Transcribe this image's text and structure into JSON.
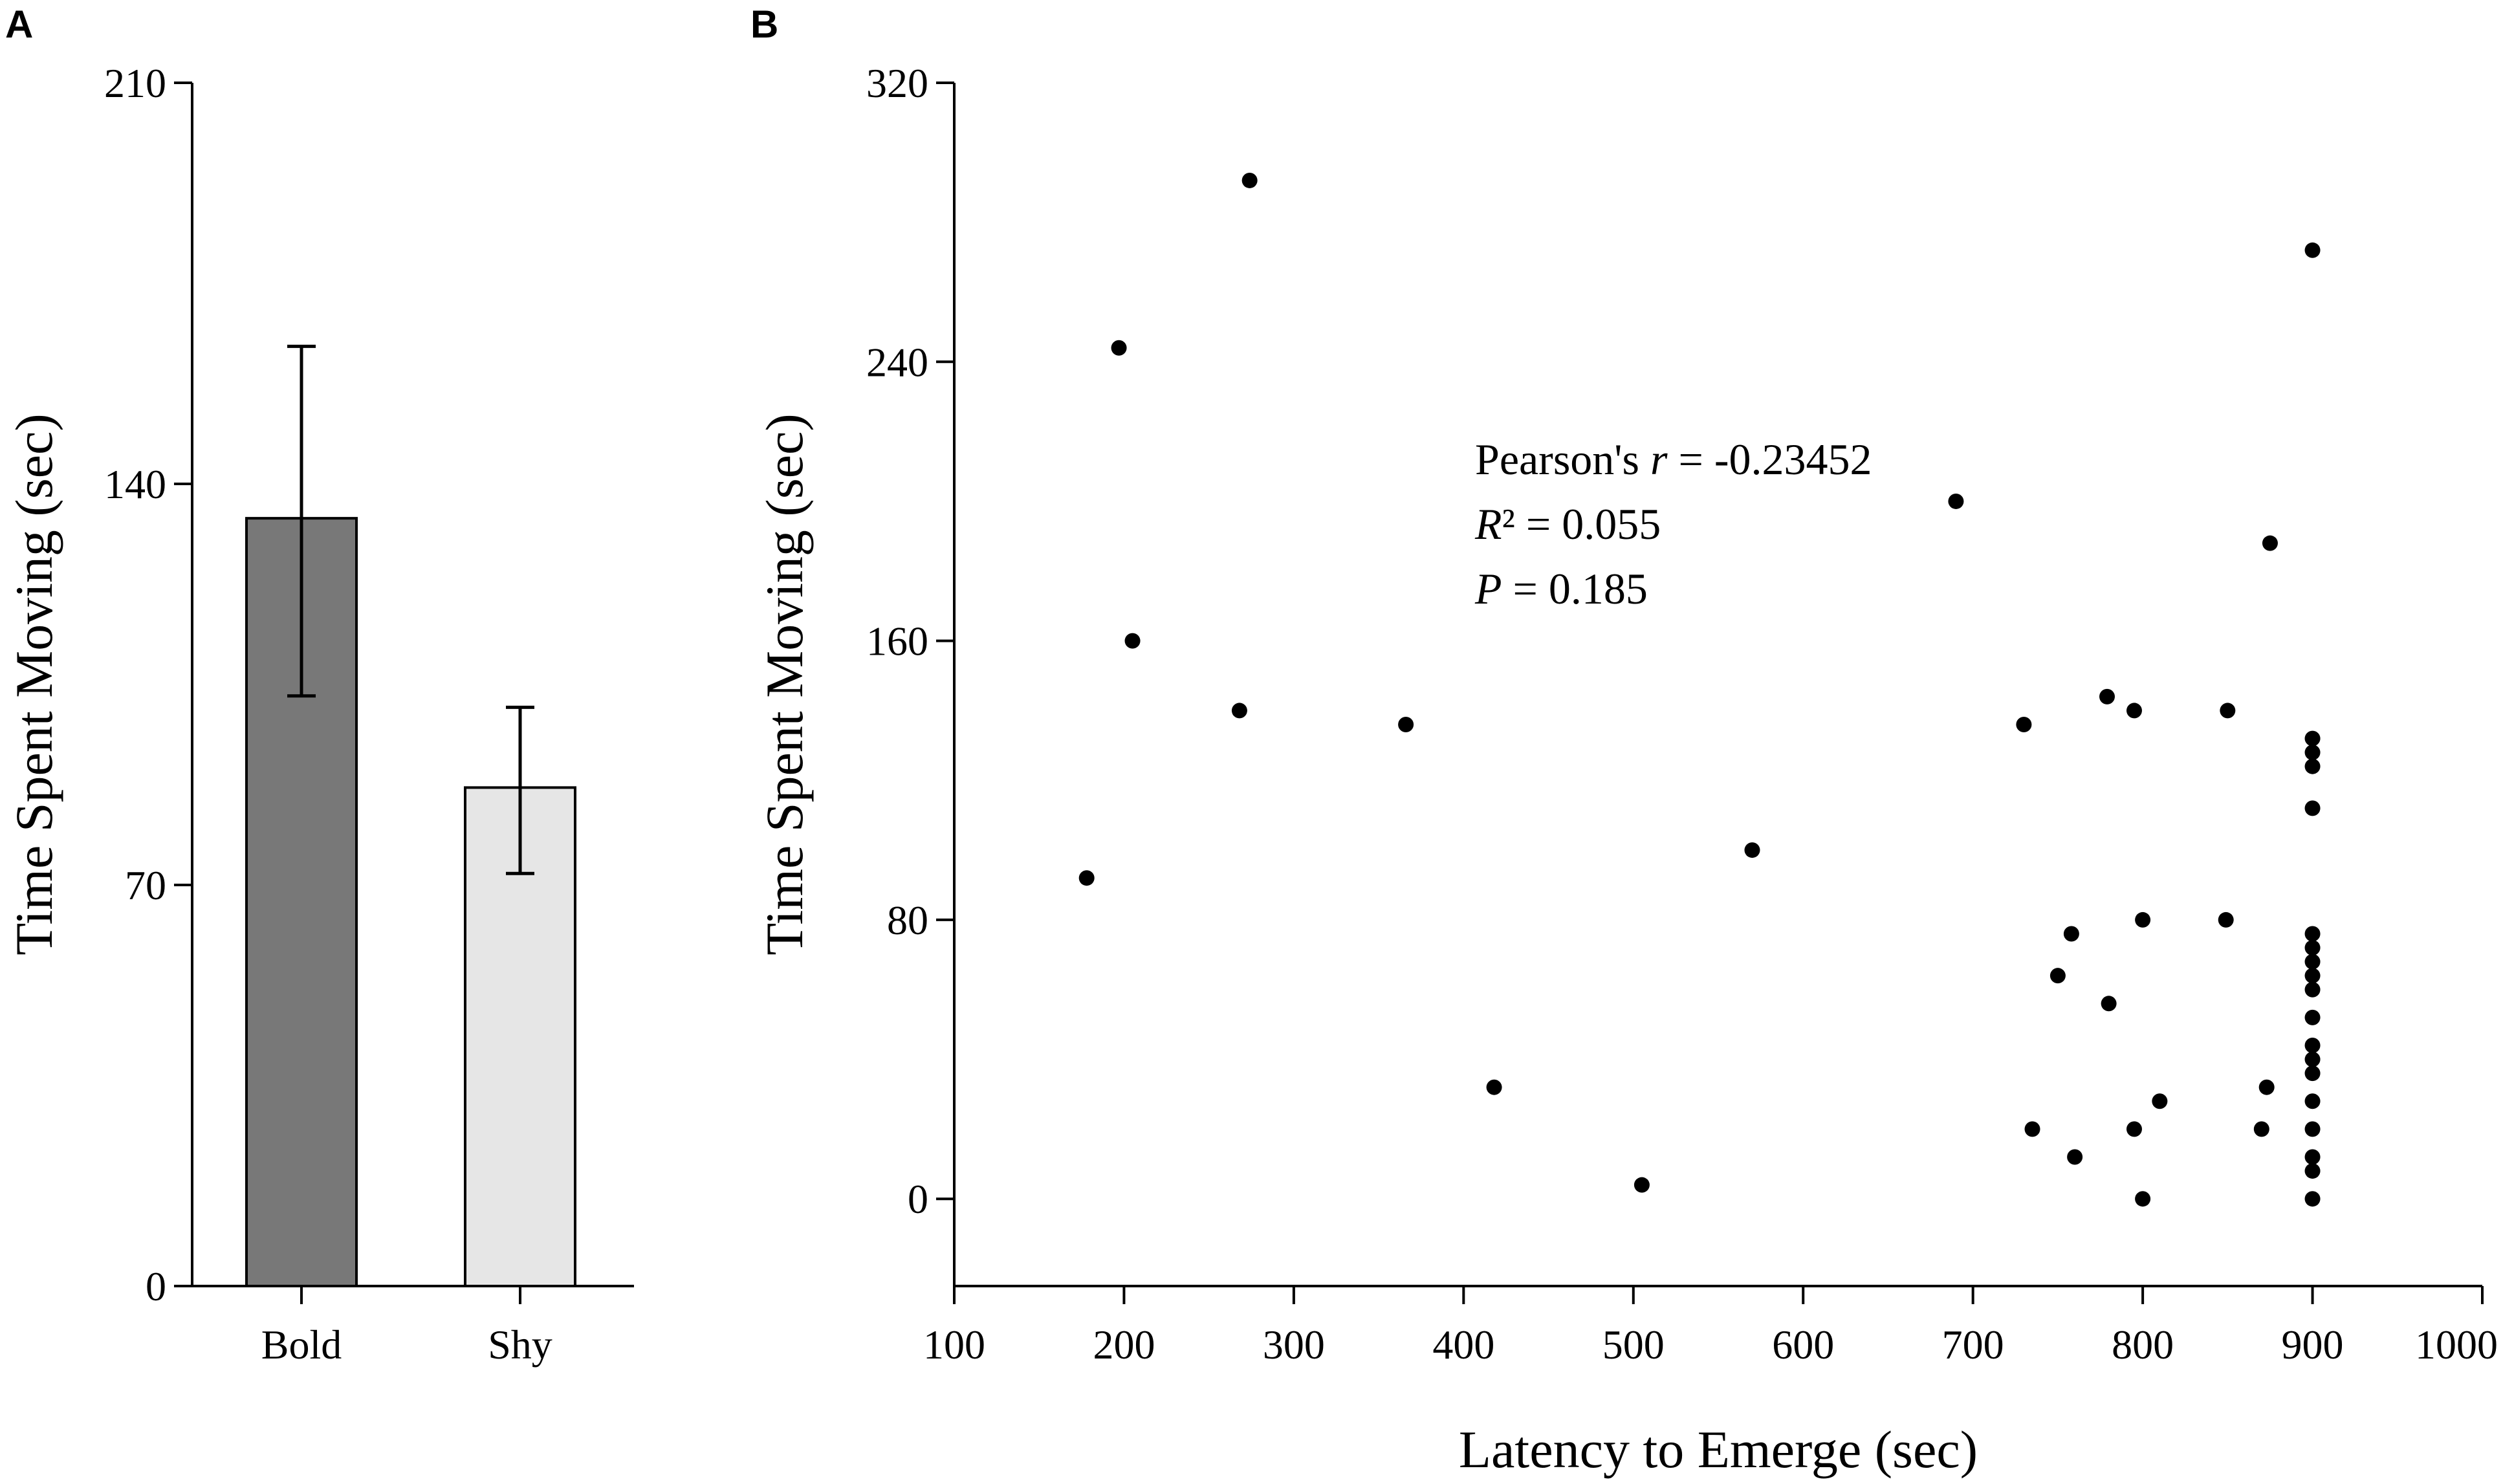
{
  "chart_data": [
    {
      "panel": "A",
      "type": "bar",
      "ylabel": "Time Spent Moving (sec)",
      "ylim": [
        0,
        210
      ],
      "yticks": [
        0,
        70,
        140,
        210
      ],
      "categories": [
        "Bold",
        "Shy"
      ],
      "values": [
        134,
        87
      ],
      "error_upper": [
        164,
        101
      ],
      "error_lower": [
        103,
        72
      ],
      "colors": [
        "#787878",
        "#e6e6e6"
      ]
    },
    {
      "panel": "B",
      "type": "scatter",
      "xlabel": "Latency to Emerge (sec)",
      "ylabel": "Time Spent Moving (sec)",
      "xlim": [
        100,
        1000
      ],
      "ylim": [
        -25,
        320
      ],
      "xticks": [
        100,
        200,
        300,
        400,
        500,
        600,
        700,
        800,
        900,
        1000
      ],
      "yticks": [
        0,
        80,
        160,
        240,
        320
      ],
      "annotation": {
        "line1_prefix": "Pearson's ",
        "line1_var": "r",
        "line1_value": " = -0.23452",
        "line2_var": "R",
        "line2_value": "² = 0.055",
        "line3_var": "P",
        "line3_value": " = 0.185"
      },
      "points": [
        {
          "x": 178,
          "y": 92
        },
        {
          "x": 197,
          "y": 244
        },
        {
          "x": 205,
          "y": 160
        },
        {
          "x": 268,
          "y": 140
        },
        {
          "x": 274,
          "y": 292
        },
        {
          "x": 366,
          "y": 136
        },
        {
          "x": 418,
          "y": 32
        },
        {
          "x": 505,
          "y": 4
        },
        {
          "x": 570,
          "y": 100
        },
        {
          "x": 690,
          "y": 200
        },
        {
          "x": 730,
          "y": 136
        },
        {
          "x": 735,
          "y": 20
        },
        {
          "x": 750,
          "y": 64
        },
        {
          "x": 758,
          "y": 76
        },
        {
          "x": 760,
          "y": 12
        },
        {
          "x": 779,
          "y": 144
        },
        {
          "x": 780,
          "y": 56
        },
        {
          "x": 795,
          "y": 140
        },
        {
          "x": 795,
          "y": 20
        },
        {
          "x": 800,
          "y": 80
        },
        {
          "x": 800,
          "y": 0
        },
        {
          "x": 810,
          "y": 28
        },
        {
          "x": 849,
          "y": 80
        },
        {
          "x": 850,
          "y": 140
        },
        {
          "x": 870,
          "y": 20
        },
        {
          "x": 873,
          "y": 32
        },
        {
          "x": 875,
          "y": 188
        },
        {
          "x": 900,
          "y": 272
        },
        {
          "x": 900,
          "y": 132
        },
        {
          "x": 900,
          "y": 128
        },
        {
          "x": 900,
          "y": 124
        },
        {
          "x": 900,
          "y": 112
        },
        {
          "x": 900,
          "y": 76
        },
        {
          "x": 900,
          "y": 72
        },
        {
          "x": 900,
          "y": 68
        },
        {
          "x": 900,
          "y": 64
        },
        {
          "x": 900,
          "y": 60
        },
        {
          "x": 900,
          "y": 52
        },
        {
          "x": 900,
          "y": 44
        },
        {
          "x": 900,
          "y": 40
        },
        {
          "x": 900,
          "y": 36
        },
        {
          "x": 900,
          "y": 28
        },
        {
          "x": 900,
          "y": 20
        },
        {
          "x": 900,
          "y": 12
        },
        {
          "x": 900,
          "y": 8
        },
        {
          "x": 900,
          "y": 0
        }
      ]
    }
  ]
}
